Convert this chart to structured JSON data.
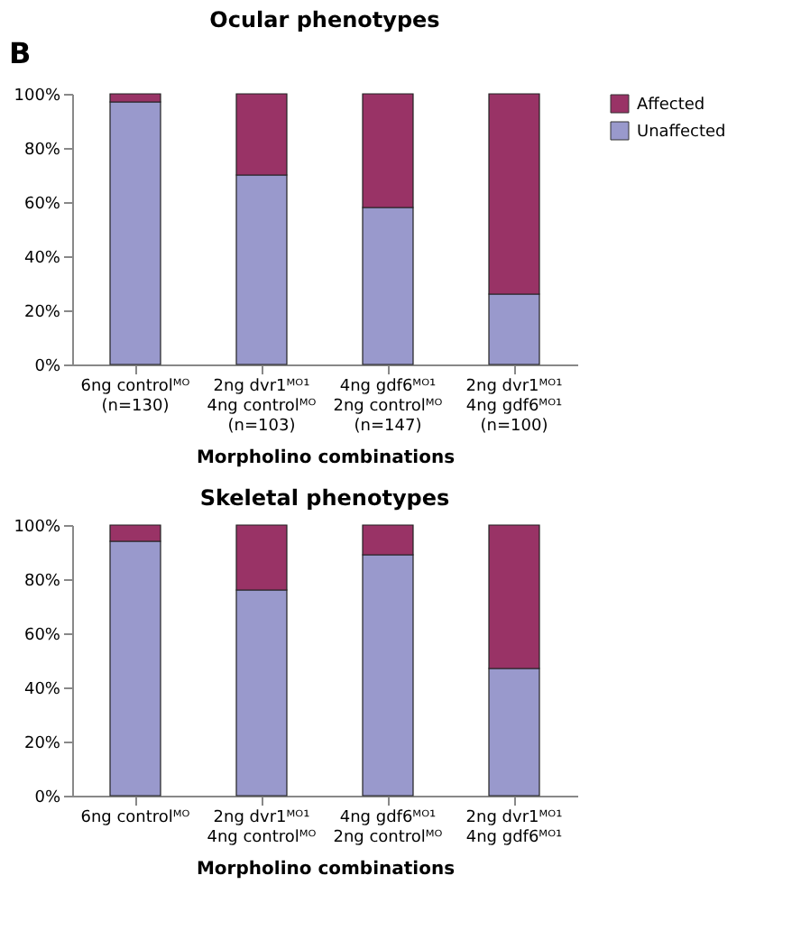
{
  "chart_data": [
    {
      "type": "bar",
      "stacked": true,
      "title": "Ocular phenotypes",
      "xlabel": "Morpholino combinations",
      "annotations": [
        "B"
      ],
      "categories": [
        "6ng controlᴹᴼ\n(n=130)",
        "2ng dvr1ᴹᴼ¹\n4ng controlᴹᴼ\n(n=103)",
        "4ng gdf6ᴹᴼ¹\n2ng controlᴹᴼ\n(n=147)",
        "2ng dvr1ᴹᴼ¹\n4ng gdf6ᴹᴼ¹\n(n=100)"
      ],
      "series": [
        {
          "name": "Unaffected",
          "color": "#9999cc",
          "values": [
            97,
            70,
            58,
            26
          ]
        },
        {
          "name": "Affected",
          "color": "#993366",
          "values": [
            3,
            30,
            42,
            74
          ]
        }
      ],
      "ylim": [
        0,
        100
      ],
      "yticks": [
        {
          "value": 0,
          "label": "0%"
        },
        {
          "value": 20,
          "label": "20%"
        },
        {
          "value": 40,
          "label": "40%"
        },
        {
          "value": 60,
          "label": "60%"
        },
        {
          "value": 80,
          "label": "80%"
        },
        {
          "value": 100,
          "label": "100%"
        }
      ],
      "grid": false,
      "legend": "right"
    },
    {
      "type": "bar",
      "stacked": true,
      "title": "Skeletal phenotypes",
      "xlabel": "Morpholino combinations",
      "categories": [
        "6ng controlᴹᴼ",
        "2ng dvr1ᴹᴼ¹\n4ng controlᴹᴼ",
        "4ng gdf6ᴹᴼ¹\n2ng controlᴹᴼ",
        "2ng dvr1ᴹᴼ¹\n4ng gdf6ᴹᴼ¹"
      ],
      "series": [
        {
          "name": "Unaffected",
          "color": "#9999cc",
          "values": [
            94,
            76,
            89,
            47
          ]
        },
        {
          "name": "Affected",
          "color": "#993366",
          "values": [
            6,
            24,
            11,
            53
          ]
        }
      ],
      "ylim": [
        0,
        100
      ],
      "yticks": [
        {
          "value": 0,
          "label": "0%"
        },
        {
          "value": 20,
          "label": "20%"
        },
        {
          "value": 40,
          "label": "40%"
        },
        {
          "value": 60,
          "label": "60%"
        },
        {
          "value": 80,
          "label": "80%"
        },
        {
          "value": 100,
          "label": "100%"
        }
      ],
      "grid": false,
      "legend": "right"
    }
  ]
}
